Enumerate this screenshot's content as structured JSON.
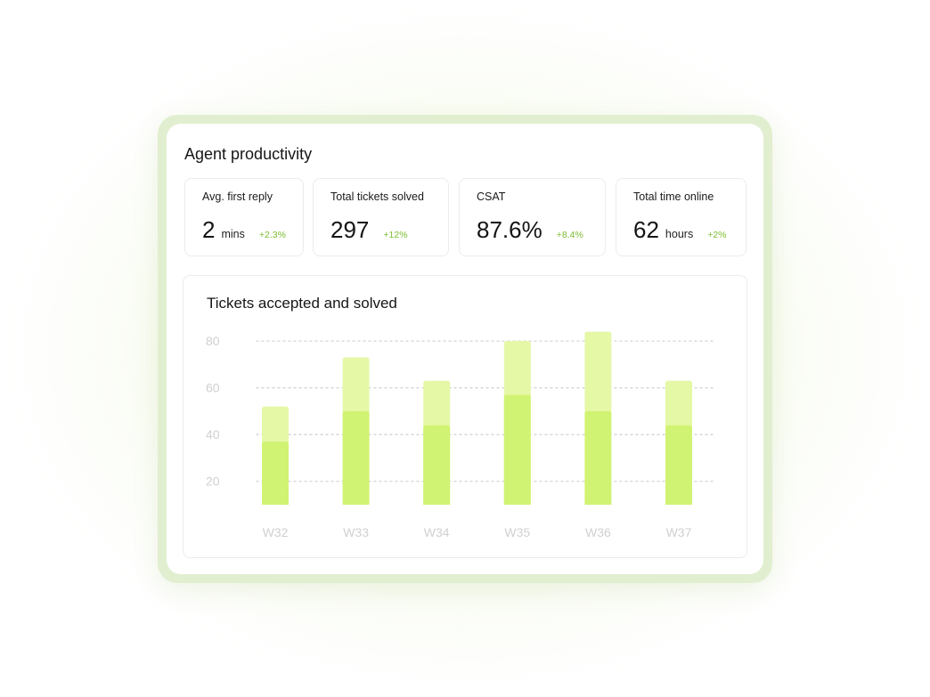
{
  "dashboard": {
    "title": "Agent productivity",
    "metrics": [
      {
        "label": "Avg. first reply",
        "value": "2",
        "unit": "mins",
        "delta": "+2.3%"
      },
      {
        "label": "Total tickets solved",
        "value": "297",
        "unit": "",
        "delta": "+12%"
      },
      {
        "label": "CSAT",
        "value": "87.6%",
        "unit": "",
        "delta": "+8.4%"
      },
      {
        "label": "Total time online",
        "value": "62",
        "unit": "hours",
        "delta": "+2%"
      }
    ]
  },
  "colors": {
    "accepted": "#e5f8a6",
    "solved": "#d1f373",
    "delta": "#7cbc2e",
    "gridline": "#d3d3d3",
    "axis_text": "#d0d0d0"
  },
  "chart_data": {
    "type": "bar",
    "title": "Tickets accepted and solved",
    "categories": [
      "W32",
      "W33",
      "W34",
      "W35",
      "W36",
      "W37"
    ],
    "series": [
      {
        "values": [
          52,
          73,
          63,
          80,
          84,
          63
        ]
      },
      {
        "values": [
          37,
          50,
          44,
          57,
          50,
          44
        ]
      }
    ],
    "yticks": [
      20,
      40,
      60,
      80
    ],
    "ylim": [
      10,
      85
    ],
    "grid": true,
    "stacking": "overlay"
  }
}
